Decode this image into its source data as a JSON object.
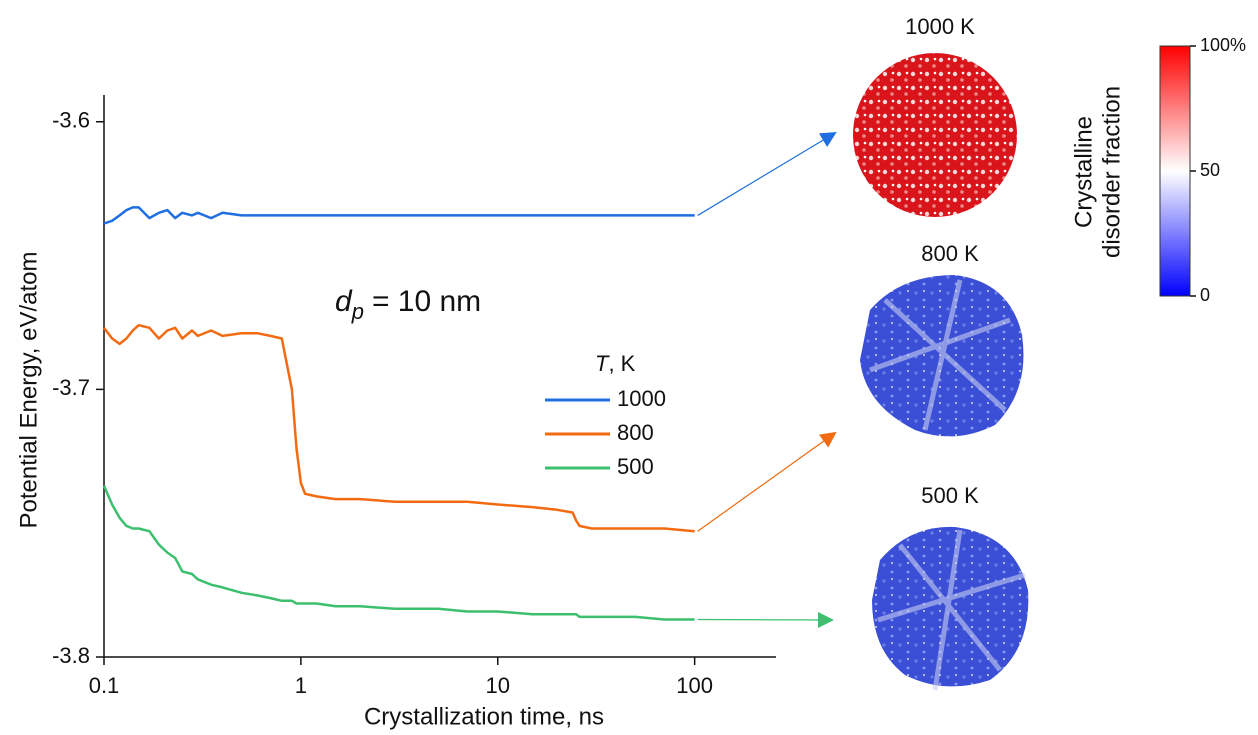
{
  "chart_data": {
    "type": "line",
    "x_label": "Crystallization time, ns",
    "y_label": "Potential Energy, eV/atom",
    "x_log": true,
    "grid": false,
    "xlim": [
      0.1,
      250
    ],
    "ylim": [
      -3.8,
      -3.59
    ],
    "xticks": [
      0.1,
      1,
      10,
      100
    ],
    "yticks": [
      -3.6,
      -3.7,
      -3.8
    ],
    "annotation": {
      "var": "d",
      "sub": "p",
      "text": "= 10 nm"
    },
    "legend_title": {
      "var": "T",
      "text": ", K"
    },
    "x": [
      0.1,
      0.11,
      0.12,
      0.13,
      0.14,
      0.15,
      0.17,
      0.19,
      0.21,
      0.23,
      0.25,
      0.28,
      0.3,
      0.35,
      0.4,
      0.5,
      0.6,
      0.7,
      0.8,
      0.9,
      0.95,
      1,
      1.05,
      1.2,
      1.5,
      2,
      3,
      5,
      7,
      10,
      15,
      20,
      24,
      25,
      26,
      30,
      50,
      70,
      100
    ],
    "series": [
      {
        "name": "1000",
        "color": "#1f6fe0",
        "values": [
          -3.638,
          -3.637,
          -3.635,
          -3.633,
          -3.632,
          -3.632,
          -3.636,
          -3.634,
          -3.633,
          -3.636,
          -3.634,
          -3.635,
          -3.634,
          -3.636,
          -3.634,
          -3.635,
          -3.635,
          -3.635,
          -3.635,
          -3.635,
          -3.635,
          -3.635,
          -3.635,
          -3.635,
          -3.635,
          -3.635,
          -3.635,
          -3.635,
          -3.635,
          -3.635,
          -3.635,
          -3.635,
          -3.635,
          -3.635,
          -3.635,
          -3.635,
          -3.635,
          -3.635,
          -3.635
        ]
      },
      {
        "name": "800",
        "color": "#f26b12",
        "values": [
          -3.677,
          -3.681,
          -3.683,
          -3.681,
          -3.678,
          -3.676,
          -3.677,
          -3.681,
          -3.678,
          -3.677,
          -3.681,
          -3.678,
          -3.68,
          -3.678,
          -3.68,
          -3.679,
          -3.679,
          -3.68,
          -3.681,
          -3.7,
          -3.722,
          -3.735,
          -3.739,
          -3.74,
          -3.741,
          -3.741,
          -3.742,
          -3.742,
          -3.742,
          -3.743,
          -3.744,
          -3.745,
          -3.746,
          -3.749,
          -3.751,
          -3.752,
          -3.752,
          -3.752,
          -3.753
        ]
      },
      {
        "name": "500",
        "color": "#3cbf6e",
        "values": [
          -3.736,
          -3.743,
          -3.748,
          -3.751,
          -3.752,
          -3.752,
          -3.753,
          -3.758,
          -3.761,
          -3.763,
          -3.768,
          -3.769,
          -3.771,
          -3.773,
          -3.774,
          -3.776,
          -3.777,
          -3.778,
          -3.779,
          -3.779,
          -3.78,
          -3.78,
          -3.78,
          -3.78,
          -3.781,
          -3.781,
          -3.782,
          -3.782,
          -3.783,
          -3.783,
          -3.784,
          -3.784,
          -3.784,
          -3.784,
          -3.785,
          -3.785,
          -3.785,
          -3.786,
          -3.786
        ]
      }
    ],
    "panels": [
      {
        "label": "1000 K"
      },
      {
        "label": "800 K"
      },
      {
        "label": "500 K"
      }
    ],
    "colorbar": {
      "label": [
        "Crystalline",
        "disorder fraction"
      ],
      "lim": [
        0,
        100
      ],
      "ticks": [
        0,
        50,
        {
          "value": 100,
          "label": "100%"
        }
      ],
      "colors": [
        "#0000ff",
        "#ffffff",
        "#ff0000"
      ]
    }
  }
}
